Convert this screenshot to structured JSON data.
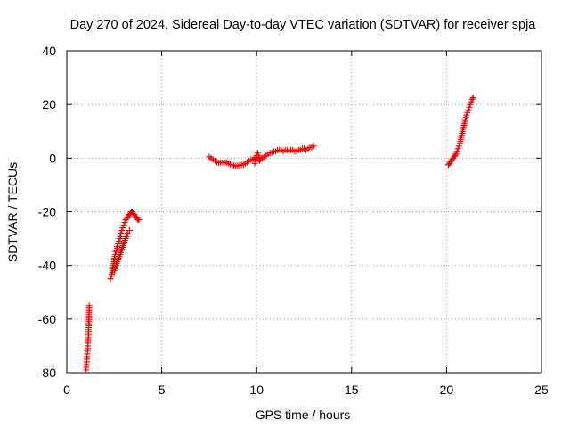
{
  "chart_data": {
    "type": "scatter",
    "title": "Day 270 of 2024, Sidereal Day-to-day VTEC variation (SDTVAR) for receiver spja",
    "xlabel": "GPS time / hours",
    "ylabel": "SDTVAR / TECUs",
    "xlim": [
      0,
      25
    ],
    "ylim": [
      -80,
      40
    ],
    "xticks": [
      0,
      5,
      10,
      15,
      20,
      25
    ],
    "yticks": [
      -80,
      -60,
      -40,
      -20,
      0,
      20,
      40
    ],
    "grid": true,
    "marker": "plus",
    "color": "#ee0000",
    "series": [
      {
        "name": "SDTVAR",
        "segments": [
          {
            "x": [
              1.02,
              1.03,
              1.04,
              1.05,
              1.06,
              1.07,
              1.08,
              1.09,
              1.1,
              1.11,
              1.12,
              1.13,
              1.14,
              1.15,
              1.16,
              1.17,
              1.18
            ],
            "y": [
              -79,
              -78,
              -77,
              -76,
              -75,
              -74,
              -73,
              -72,
              -71,
              -70,
              -69,
              -67,
              -66,
              -64,
              -61,
              -59,
              -55
            ]
          },
          {
            "x": [
              2.3,
              2.35,
              2.4,
              2.45,
              2.5,
              2.55,
              2.6,
              2.65,
              2.7,
              2.75,
              2.8,
              2.85,
              2.9,
              2.95,
              3.0,
              3.05,
              3.1,
              3.15,
              3.2,
              3.25,
              3.3,
              3.35,
              3.4,
              3.45,
              3.5,
              3.55,
              3.6,
              3.65,
              3.7,
              3.75,
              3.8
            ],
            "y": [
              -45,
              -44,
              -42,
              -40,
              -38,
              -36,
              -35,
              -33,
              -32,
              -31,
              -30,
              -28,
              -27,
              -26,
              -25,
              -24,
              -23,
              -22.5,
              -22,
              -21.5,
              -21,
              -20.5,
              -20,
              -20,
              -20.5,
              -21,
              -21.5,
              -22,
              -22.5,
              -23,
              -23
            ]
          },
          {
            "x": [
              2.5,
              2.6,
              2.7,
              2.8,
              2.9,
              3.0,
              3.1,
              3.2,
              3.3
            ],
            "y": [
              -42,
              -40,
              -38,
              -36,
              -34,
              -32,
              -30,
              -28,
              -27
            ]
          },
          {
            "x": [
              7.5,
              7.6,
              7.7,
              7.8,
              7.9,
              8.0,
              8.4,
              8.5,
              8.6,
              8.7,
              8.8,
              8.9,
              9.0,
              9.1,
              9.2,
              9.3,
              9.4,
              9.5,
              9.6,
              9.7,
              9.8,
              9.9,
              10.0,
              10.1,
              10.2,
              10.3,
              10.4,
              10.5,
              10.6,
              10.7,
              10.8,
              10.9,
              11.0,
              11.1,
              11.2,
              11.3,
              11.4,
              11.5,
              11.6,
              11.7,
              11.8,
              11.9,
              12.0,
              12.1,
              12.2,
              12.3,
              12.4,
              12.5,
              12.6,
              12.7,
              12.8,
              12.9,
              13.0
            ],
            "y": [
              0.5,
              0,
              -0.5,
              -1,
              -1.5,
              -1.8,
              -1.5,
              -2,
              -2.3,
              -2.5,
              -2.8,
              -3,
              -2.8,
              -2.7,
              -2.5,
              -2.5,
              -2,
              -1.5,
              -1,
              -0.5,
              -0.5,
              0,
              0,
              -0.5,
              -0.5,
              0,
              0.5,
              1,
              1.5,
              2,
              2,
              2.5,
              2.5,
              3,
              3,
              3,
              2.5,
              3,
              3,
              2.5,
              3,
              3,
              2.5,
              2.5,
              3,
              3,
              3.5,
              3.5,
              3,
              3.5,
              4,
              4,
              4.5
            ]
          },
          {
            "x": [
              9.9,
              9.95,
              10.0,
              10.05,
              10.1,
              10.15
            ],
            "y": [
              -2,
              -1,
              1,
              2,
              1,
              -1
            ]
          },
          {
            "x": [
              20.1,
              20.15,
              20.2,
              20.25,
              20.3,
              20.35,
              20.4,
              20.45,
              20.5,
              20.55,
              20.6,
              20.65,
              20.7,
              20.75,
              20.8,
              20.85,
              20.9,
              20.95,
              21.0,
              21.05,
              21.1,
              21.15,
              21.2,
              21.25,
              21.3,
              21.35,
              21.4
            ],
            "y": [
              -2.5,
              -2,
              -1.5,
              -1,
              -0.5,
              0,
              0.5,
              1,
              1.5,
              2.5,
              3.5,
              4.5,
              5.5,
              7,
              8.5,
              10,
              11.5,
              13,
              14.5,
              16,
              17,
              18,
              19,
              20,
              21,
              22,
              22.5
            ]
          }
        ]
      }
    ]
  }
}
